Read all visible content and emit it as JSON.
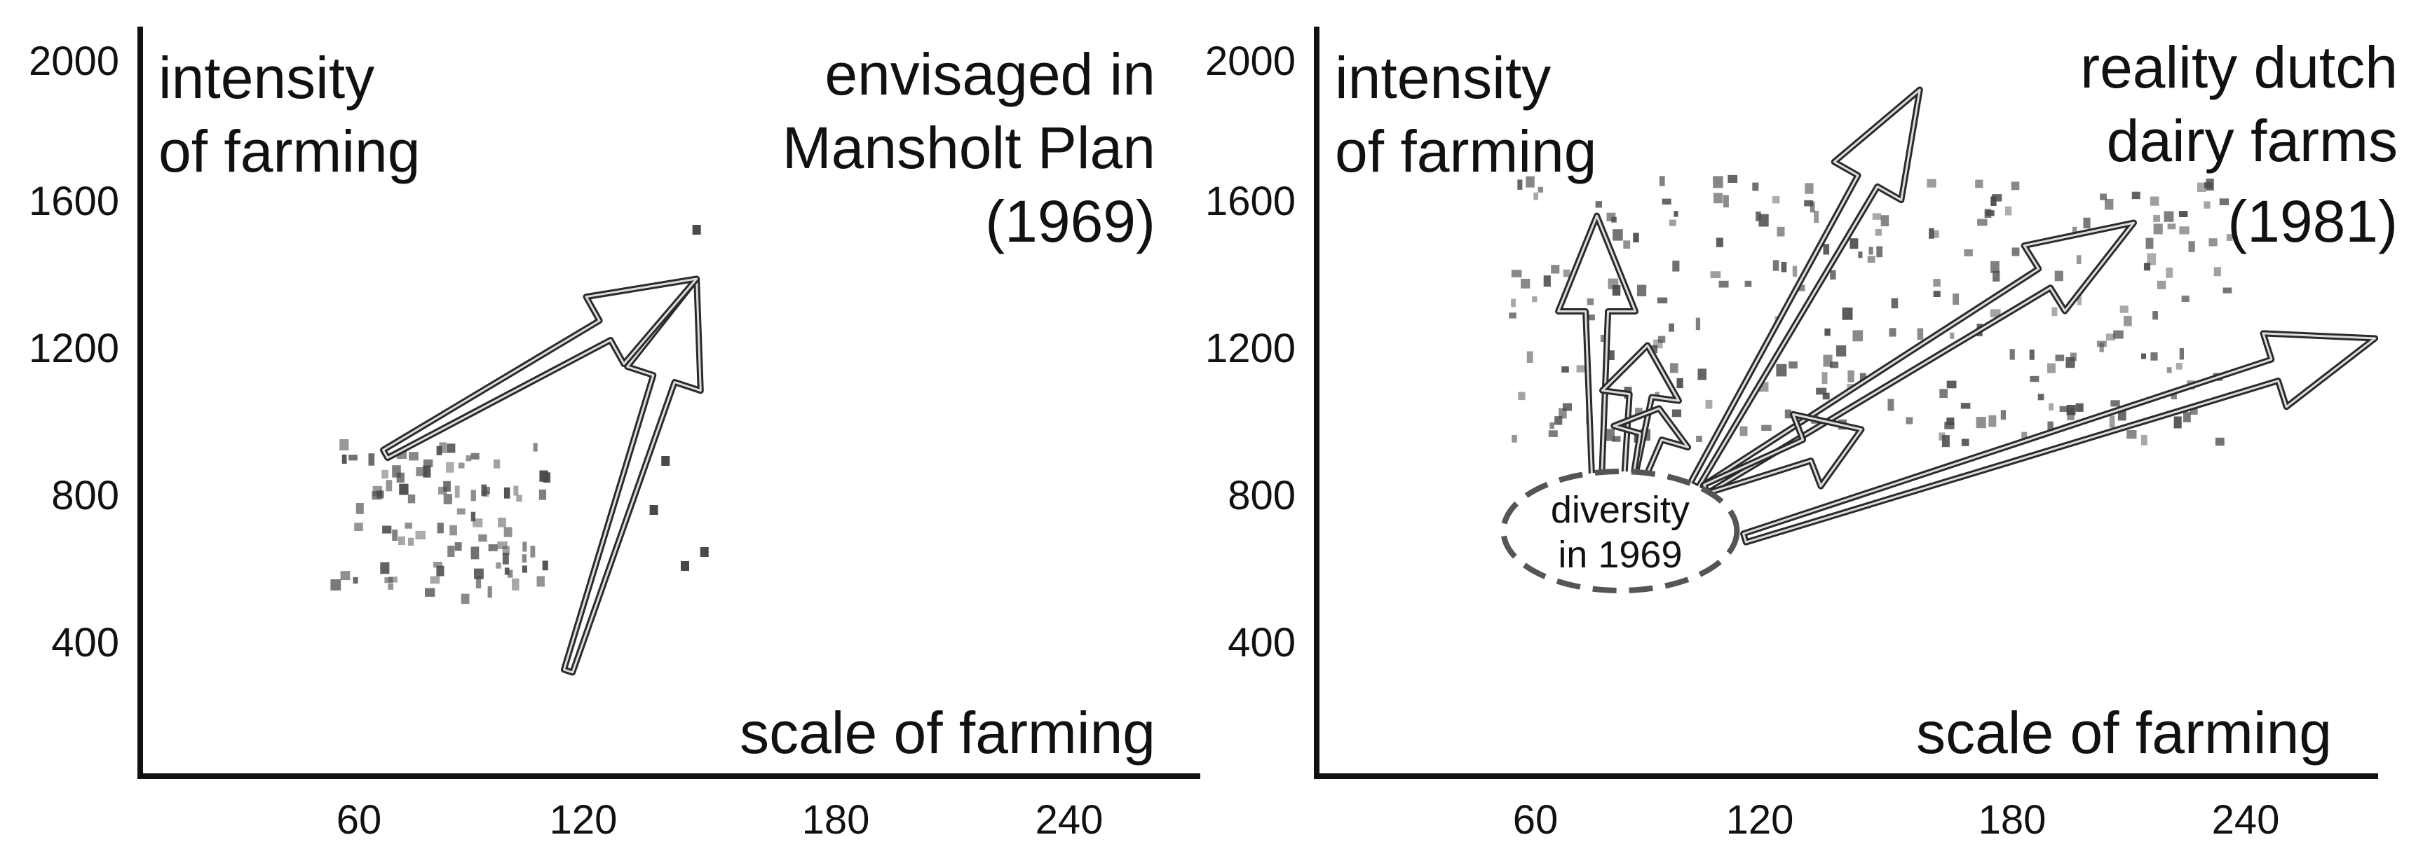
{
  "chart_data": [
    {
      "type": "scatter",
      "title": "envisaged in Mansholt Plan (1969)",
      "title_lines": [
        "envisaged in",
        "Mansholt Plan",
        "(1969)"
      ],
      "ylabel_lines": [
        "intensity",
        "of farming"
      ],
      "xlabel": "scale of farming",
      "x_ticks": [
        "60",
        "120",
        "180",
        "240"
      ],
      "x_tick_values": [
        60,
        120,
        180,
        240
      ],
      "y_ticks": [
        "400",
        "800",
        "1200",
        "1600",
        "2000"
      ],
      "y_tick_values": [
        400,
        800,
        1200,
        1600,
        2000
      ],
      "xlim": [
        0,
        285
      ],
      "ylim": [
        0,
        2060
      ],
      "cluster": {
        "x_range": [
          50,
          105
        ],
        "y_range": [
          500,
          950
        ],
        "count": 90
      },
      "outliers": [
        [
          135,
          900
        ],
        [
          132,
          760
        ],
        [
          145,
          640
        ],
        [
          140,
          600
        ],
        [
          143,
          1560
        ]
      ],
      "arrows": [
        {
          "name": "envisaged-arrow-up",
          "from": [
            110,
            300
          ],
          "to": [
            143,
            1420
          ]
        },
        {
          "name": "envisaged-arrow-right",
          "from": [
            63,
            920
          ],
          "to": [
            143,
            1420
          ]
        }
      ]
    },
    {
      "type": "scatter",
      "title": "reality dutch dairy farms (1981)",
      "title_lines": [
        "reality dutch",
        "dairy farms",
        "(1981)"
      ],
      "ylabel_lines": [
        "intensity",
        "of farming"
      ],
      "xlabel": "scale of farming",
      "x_ticks": [
        "60",
        "120",
        "180",
        "240"
      ],
      "x_tick_values": [
        60,
        120,
        180,
        240
      ],
      "y_ticks": [
        "400",
        "800",
        "1200",
        "1600",
        "2000"
      ],
      "y_tick_values": [
        400,
        800,
        1200,
        1600,
        2000
      ],
      "xlim": [
        0,
        285
      ],
      "ylim": [
        0,
        2060
      ],
      "ellipse_label_lines": [
        "diversity",
        "in 1969"
      ],
      "ellipse": {
        "center": [
          78,
          700
        ],
        "rx": 30,
        "ry": 170
      },
      "cluster": {
        "x_range": [
          50,
          235
        ],
        "y_range": [
          950,
          1720
        ],
        "count": 220
      },
      "arrows": [
        {
          "name": "reality-arrow-steep-left",
          "from": [
            72,
            820
          ],
          "to": [
            72,
            1600
          ]
        },
        {
          "name": "reality-arrow-small-up",
          "from": [
            80,
            820
          ],
          "to": [
            85,
            1230
          ]
        },
        {
          "name": "reality-arrow-short",
          "from": [
            82,
            820
          ],
          "to": [
            88,
            1050
          ]
        },
        {
          "name": "reality-arrow-tallest",
          "from": [
            97,
            830
          ],
          "to": [
            155,
            1960
          ]
        },
        {
          "name": "reality-arrow-mid",
          "from": [
            100,
            820
          ],
          "to": [
            210,
            1580
          ]
        },
        {
          "name": "reality-arrow-back",
          "from": [
            100,
            820
          ],
          "to": [
            140,
            990
          ]
        },
        {
          "name": "reality-arrow-long",
          "from": [
            110,
            680
          ],
          "to": [
            272,
            1250
          ]
        }
      ]
    }
  ]
}
